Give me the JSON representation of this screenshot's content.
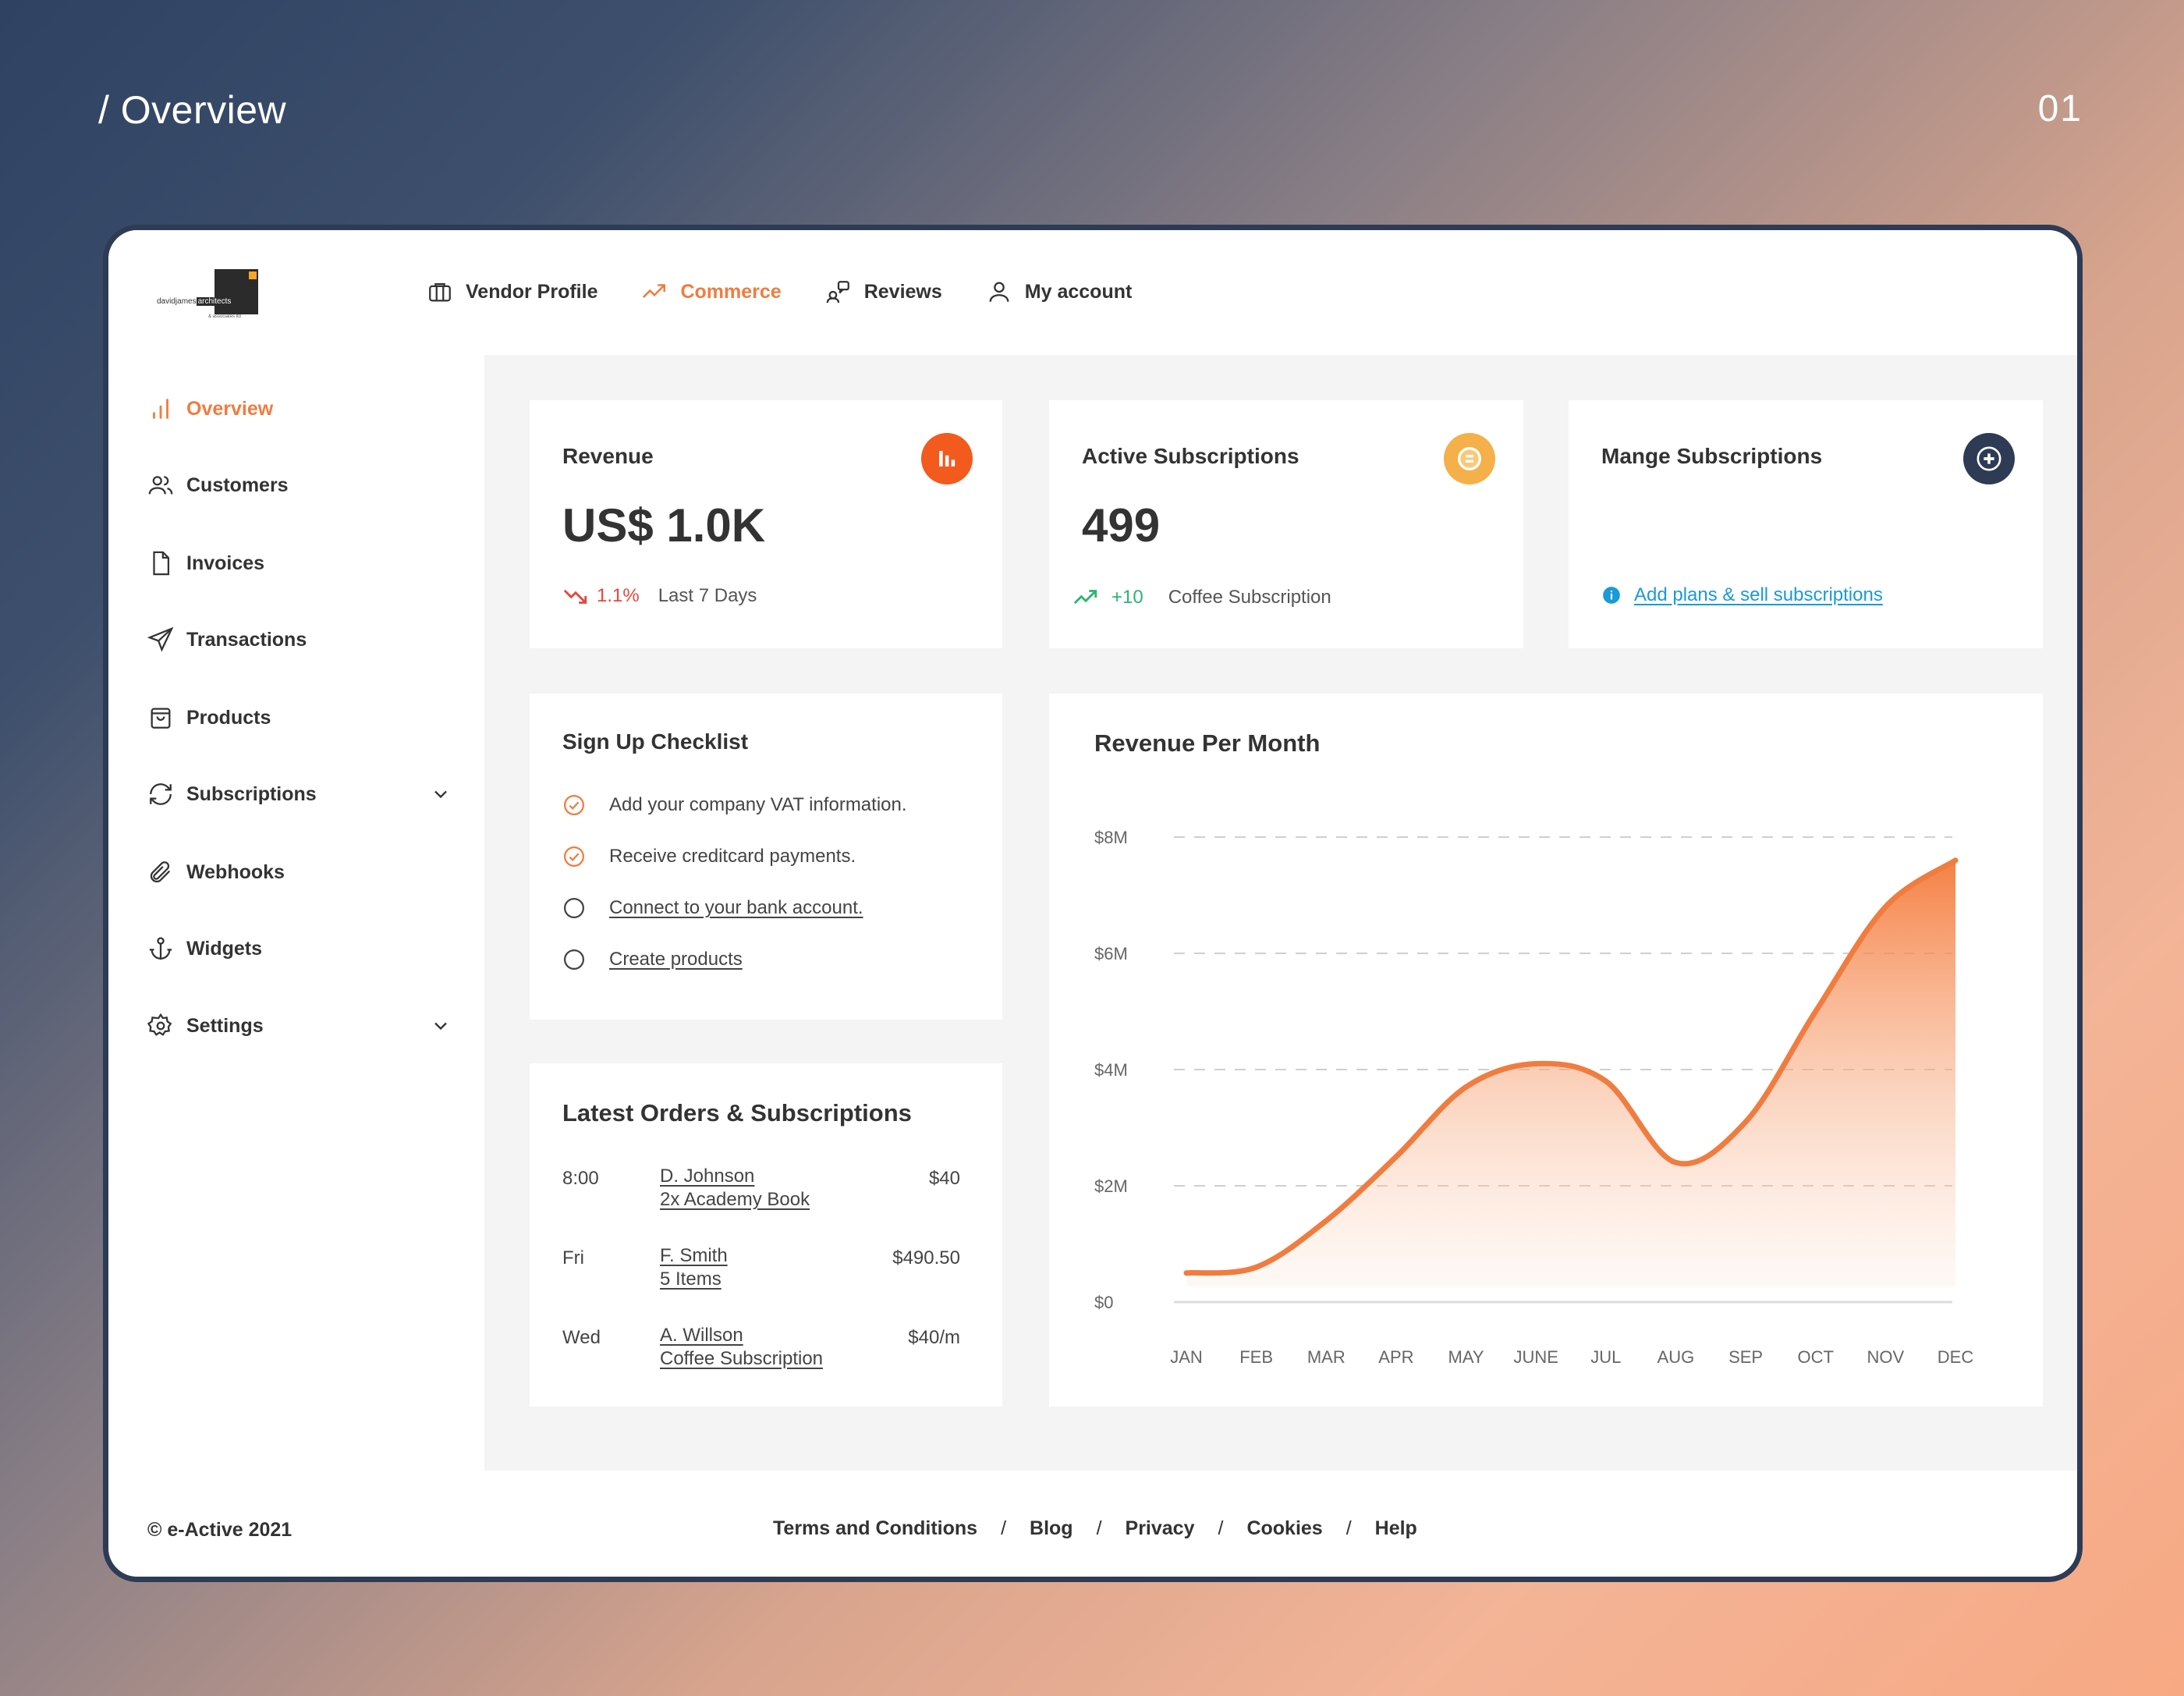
{
  "page": {
    "heading": "/ Overview",
    "number": "01"
  },
  "colors": {
    "accent": "#f07c3f",
    "dark": "#2e3b55",
    "positive": "#2bb673",
    "negative": "#e8463a",
    "link": "#1a9ad6",
    "gold": "#f5b04a"
  },
  "logo": {
    "text_left": "davidjames",
    "text_right": "architects",
    "sub": "& associates ltd"
  },
  "topnav": [
    {
      "label": "Vendor Profile",
      "icon": "briefcase-icon"
    },
    {
      "label": "Commerce",
      "icon": "trend-up-icon",
      "active": true
    },
    {
      "label": "Reviews",
      "icon": "reviews-icon"
    },
    {
      "label": "My account",
      "icon": "user-icon"
    }
  ],
  "sidebar": [
    {
      "label": "Overview",
      "icon": "bar-chart-icon",
      "active": true
    },
    {
      "label": "Customers",
      "icon": "users-icon"
    },
    {
      "label": "Invoices",
      "icon": "file-icon"
    },
    {
      "label": "Transactions",
      "icon": "send-icon"
    },
    {
      "label": "Products",
      "icon": "bag-icon"
    },
    {
      "label": "Subscriptions",
      "icon": "refresh-icon",
      "expandable": true
    },
    {
      "label": "Webhooks",
      "icon": "paperclip-icon"
    },
    {
      "label": "Widgets",
      "icon": "anchor-icon"
    },
    {
      "label": "Settings",
      "icon": "gear-icon",
      "expandable": true
    }
  ],
  "revenue": {
    "title": "Revenue",
    "value": "US$ 1.0K",
    "change": "1.1%",
    "period": "Last 7 Days"
  },
  "active_subscriptions": {
    "title": "Active Subscriptions",
    "value": "499",
    "change": "+10",
    "label": "Coffee Subscription"
  },
  "manage_subscriptions": {
    "title": "Mange Subscriptions",
    "link": "Add plans & sell subscriptions"
  },
  "checklist": {
    "title": "Sign Up Checklist",
    "items": [
      {
        "label": "Add your company VAT information.",
        "done": true
      },
      {
        "label": "Receive creditcard payments.",
        "done": true
      },
      {
        "label": "Connect to your bank account.",
        "done": false
      },
      {
        "label": "Create products",
        "done": false
      }
    ]
  },
  "orders": {
    "title": "Latest Orders & Subscriptions",
    "rows": [
      {
        "time": "8:00",
        "name": "D. Johnson",
        "detail": "2x Academy Book",
        "amount": "$40"
      },
      {
        "time": "Fri",
        "name": "F. Smith",
        "detail": "5 Items",
        "amount": "$490.50"
      },
      {
        "time": "Wed",
        "name": "A. Willson",
        "detail": "Coffee Subscription",
        "amount": "$40/m"
      }
    ]
  },
  "chart_data": {
    "type": "area",
    "title": "Revenue Per Month",
    "categories": [
      "JAN",
      "FEB",
      "MAR",
      "APR",
      "MAY",
      "JUNE",
      "JUL",
      "AUG",
      "SEP",
      "OCT",
      "NOV",
      "DEC"
    ],
    "values": [
      0.5,
      0.6,
      1.4,
      2.5,
      3.7,
      4.1,
      3.8,
      2.4,
      3.1,
      5.0,
      6.8,
      7.6
    ],
    "y_ticks": [
      "$0",
      "$2M",
      "$4M",
      "$6M",
      "$8M"
    ],
    "y_tick_values": [
      0,
      2,
      4,
      6,
      8
    ],
    "ylim": [
      0,
      8
    ],
    "grid": true,
    "color": "#f07c3f"
  },
  "footer": {
    "copyright": "© e-Active 2021",
    "links": [
      "Terms and Conditions",
      "Blog",
      "Privacy",
      "Cookies",
      "Help"
    ]
  }
}
